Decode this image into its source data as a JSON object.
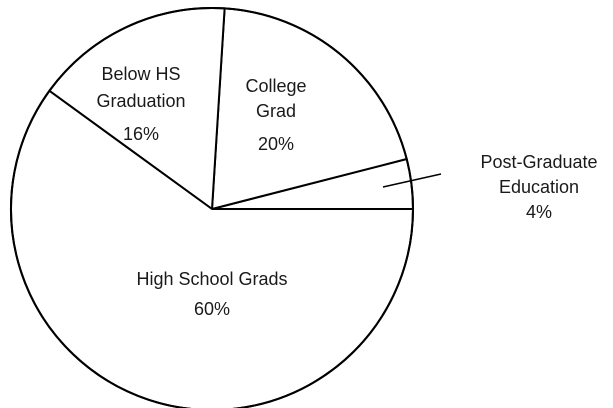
{
  "chart_data": {
    "type": "pie",
    "title": "",
    "slices": [
      {
        "label_lines": [
          "College",
          "Grad"
        ],
        "label": "College Grad",
        "value": 20,
        "value_text": "20%"
      },
      {
        "label_lines": [
          "Below HS",
          "Graduation"
        ],
        "label": "Below HS Graduation",
        "value": 16,
        "value_text": "16%"
      },
      {
        "label_lines": [
          "High School Grads"
        ],
        "label": "High School Grads",
        "value": 60,
        "value_text": "60%"
      },
      {
        "label_lines": [
          "Post-Graduate",
          "Education"
        ],
        "label": "Post-Graduate Education",
        "value": 4,
        "value_text": "4%"
      }
    ],
    "colors": {
      "fill": "#ffffff",
      "stroke": "#000000",
      "text": "#1a1a1a"
    }
  }
}
